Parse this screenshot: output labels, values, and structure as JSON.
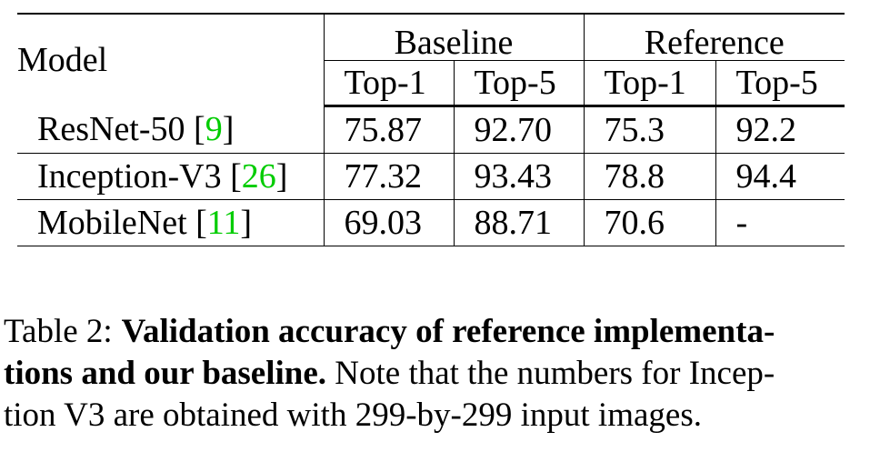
{
  "table": {
    "header": {
      "model": "Model",
      "groups": [
        "Baseline",
        "Reference"
      ],
      "subcolumns": [
        "Top-1",
        "Top-5",
        "Top-1",
        "Top-5"
      ]
    },
    "rows": [
      {
        "model": "ResNet-50",
        "cite_open": "[",
        "cite": "9",
        "cite_close": "]",
        "values": [
          "75.87",
          "92.70",
          "75.3",
          "92.2"
        ]
      },
      {
        "model": "Inception-V3",
        "cite_open": "[",
        "cite": "26",
        "cite_close": "]",
        "values": [
          "77.32",
          "93.43",
          "78.8",
          "94.4"
        ]
      },
      {
        "model": "MobileNet",
        "cite_open": "[",
        "cite": "11",
        "cite_close": "]",
        "values": [
          "69.03",
          "88.71",
          "70.6",
          "-"
        ]
      }
    ]
  },
  "caption": {
    "label": "Table 2:",
    "bold_line1": "Validation accuracy of reference implementa-",
    "bold_line2": "tions and our baseline.",
    "line2_rest": "Note that the numbers for Incep-",
    "line3": "tion V3 are obtained with 299-by-299 input images."
  },
  "colors": {
    "citation": "#00cc00"
  }
}
